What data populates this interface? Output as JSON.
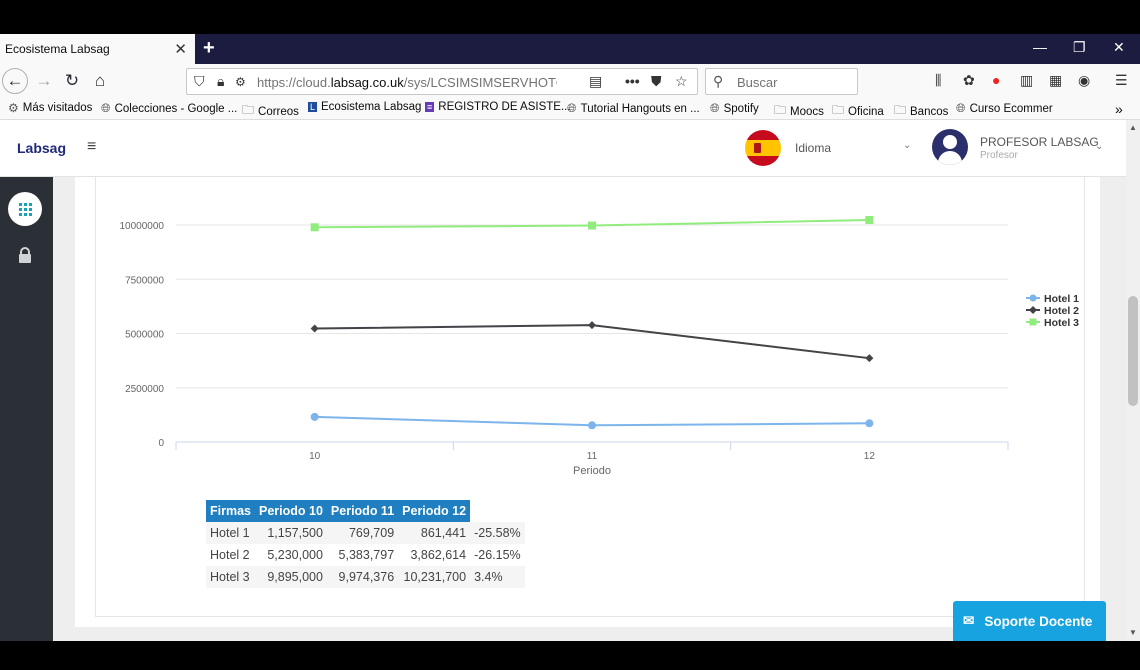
{
  "browser": {
    "tab_title": "Ecosistema Labsag",
    "tab_close": "✕",
    "new_tab": "+",
    "url_prefix": "https://cloud.",
    "url_domain": "labsag.co.uk",
    "url_rest": "/sys/LCSIMSIMSERVHOTCROC",
    "search_placeholder": "Buscar"
  },
  "bookmarks": [
    {
      "label": "Más visitados",
      "icon": "gear-icon"
    },
    {
      "label": "Colecciones - Google ...",
      "icon": "globe-icon"
    },
    {
      "label": "Correos",
      "icon": "folder-icon"
    },
    {
      "label": "Ecosistema Labsag",
      "icon": "labsag-icon"
    },
    {
      "label": "REGISTRO DE ASISTE...",
      "icon": "form-icon"
    },
    {
      "label": "Tutorial Hangouts en ...",
      "icon": "globe-icon"
    },
    {
      "label": "Spotify",
      "icon": "globe-icon"
    },
    {
      "label": "Moocs",
      "icon": "folder-icon"
    },
    {
      "label": "Oficina",
      "icon": "folder-icon"
    },
    {
      "label": "Bancos",
      "icon": "folder-icon"
    },
    {
      "label": "Curso Ecommer",
      "icon": "globe-icon"
    }
  ],
  "header": {
    "brand": "Labsag",
    "language_label": "Idioma",
    "user_name": "PROFESOR LABSAG",
    "user_role": "Profesor"
  },
  "chart_data": {
    "type": "line",
    "x": [
      10,
      11,
      12
    ],
    "xlabel": "Periodo",
    "ylabel": "",
    "ylim": [
      0,
      10000000
    ],
    "yticks": [
      "0",
      "2500000",
      "5000000",
      "7500000",
      "10000000"
    ],
    "xticks": [
      "10",
      "11",
      "12"
    ],
    "legend_position": "right",
    "series": [
      {
        "name": "Hotel 1",
        "values": [
          1157500,
          769709,
          861441
        ],
        "color": "#7cb5ec"
      },
      {
        "name": "Hotel 2",
        "values": [
          5230000,
          5383797,
          3862614
        ],
        "color": "#434348"
      },
      {
        "name": "Hotel 3",
        "values": [
          9895000,
          9974376,
          10231700
        ],
        "color": "#90ed7d"
      }
    ]
  },
  "table": {
    "headers": [
      "Firmas",
      "Periodo 10",
      "Periodo 11",
      "Periodo 12"
    ],
    "rows": [
      [
        "Hotel 1",
        "1,157,500",
        "769,709",
        "861,441",
        "-25.58%"
      ],
      [
        "Hotel 2",
        "5,230,000",
        "5,383,797",
        "3,862,614",
        "-26.15%"
      ],
      [
        "Hotel 3",
        "9,895,000",
        "9,974,376",
        "10,231,700",
        "3.4%"
      ]
    ]
  },
  "support_button": "Soporte Docente"
}
